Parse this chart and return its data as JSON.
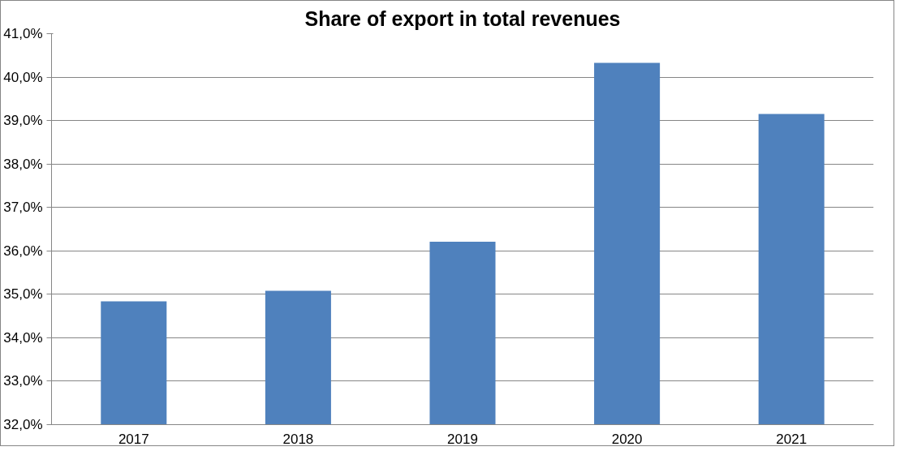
{
  "chart_data": {
    "type": "bar",
    "title": "Share of export in total revenues",
    "categories": [
      "2017",
      "2018",
      "2019",
      "2020",
      "2021"
    ],
    "values": [
      34.84,
      35.08,
      36.21,
      40.33,
      39.15
    ],
    "color": "#4f81bd",
    "ylim": [
      32,
      41
    ],
    "yticks": [
      {
        "value": 32,
        "label": "32,0%"
      },
      {
        "value": 33,
        "label": "33,0%"
      },
      {
        "value": 34,
        "label": "34,0%"
      },
      {
        "value": 35,
        "label": "35,0%"
      },
      {
        "value": 36,
        "label": "36,0%"
      },
      {
        "value": 37,
        "label": "37,0%"
      },
      {
        "value": 38,
        "label": "38,0%"
      },
      {
        "value": 39,
        "label": "39,0%"
      },
      {
        "value": 40,
        "label": "40,0%"
      },
      {
        "value": 41,
        "label": "41,0%"
      }
    ],
    "grid": "y"
  }
}
